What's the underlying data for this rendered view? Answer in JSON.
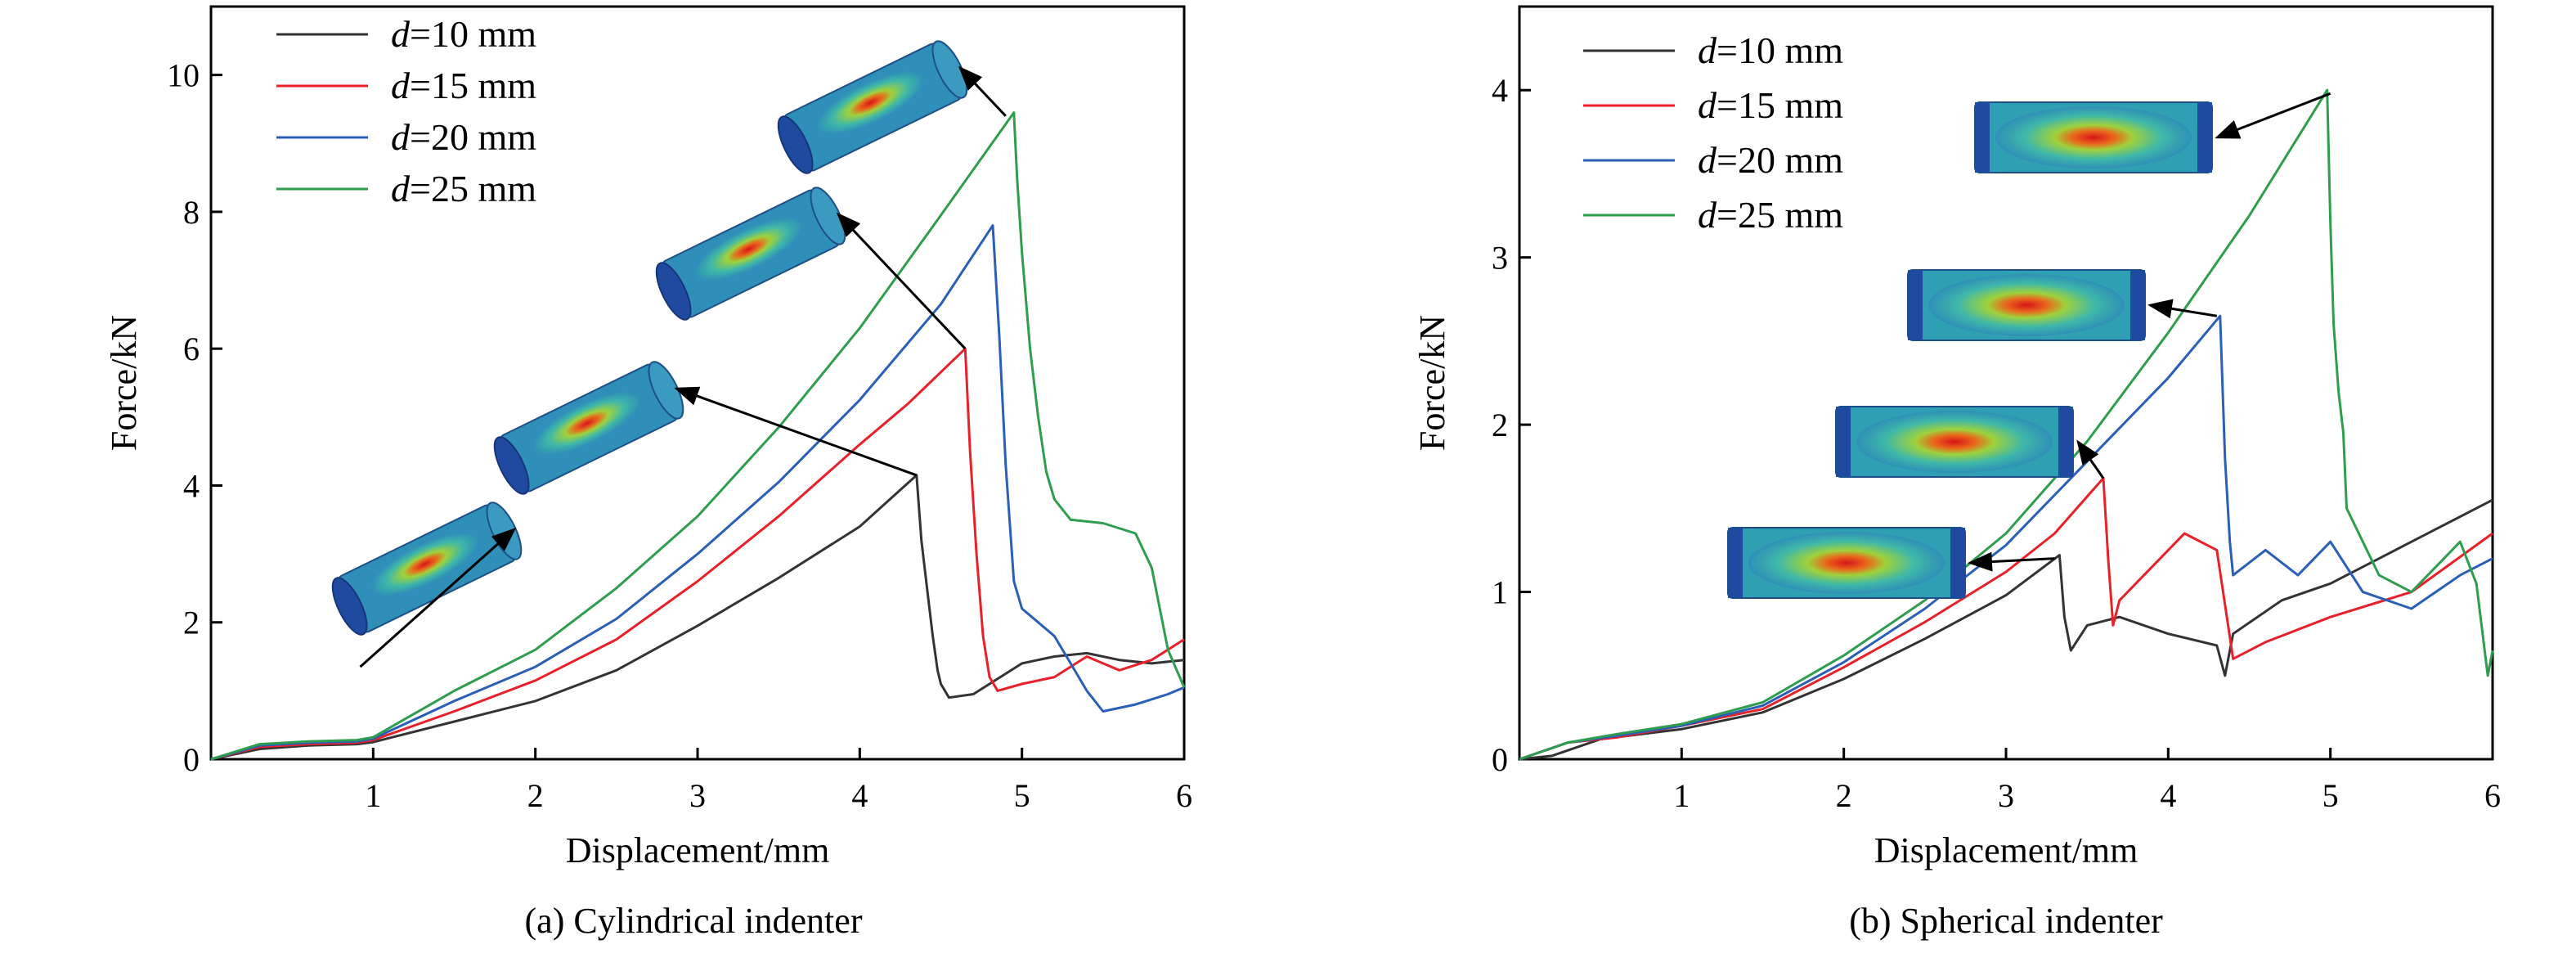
{
  "chart_data": [
    {
      "type": "line",
      "caption": "(a) Cylindrical indenter",
      "xlabel": "Displacement/mm",
      "ylabel": "Force/kN",
      "xlim": [
        0,
        6
      ],
      "ylim": [
        0,
        11
      ],
      "xticks": [
        1,
        2,
        3,
        4,
        5,
        6
      ],
      "yticks": [
        0,
        2,
        4,
        6,
        8,
        10
      ],
      "legend_position": "top-left",
      "series": [
        {
          "name": "d=10 mm",
          "color": "#333333",
          "x": [
            0,
            0.3,
            0.6,
            0.9,
            1.0,
            1.5,
            2.0,
            2.5,
            3.0,
            3.5,
            4.0,
            4.35,
            4.38,
            4.42,
            4.45,
            4.48,
            4.5,
            4.55,
            4.7,
            5.0,
            5.2,
            5.4,
            5.6,
            5.8,
            6.0
          ],
          "y": [
            0,
            0.15,
            0.2,
            0.22,
            0.25,
            0.55,
            0.85,
            1.3,
            1.95,
            2.65,
            3.4,
            4.15,
            3.2,
            2.4,
            1.8,
            1.3,
            1.1,
            0.9,
            0.95,
            1.4,
            1.5,
            1.55,
            1.45,
            1.4,
            1.45
          ]
        },
        {
          "name": "d=15 mm",
          "color": "#e8202a",
          "x": [
            0,
            0.3,
            0.6,
            0.9,
            1.0,
            1.5,
            2.0,
            2.5,
            3.0,
            3.5,
            4.0,
            4.3,
            4.65,
            4.68,
            4.72,
            4.76,
            4.8,
            4.85,
            5.0,
            5.2,
            5.4,
            5.6,
            5.8,
            6.0
          ],
          "y": [
            0,
            0.18,
            0.22,
            0.24,
            0.28,
            0.7,
            1.15,
            1.75,
            2.6,
            3.55,
            4.6,
            5.2,
            6.0,
            4.5,
            3.0,
            1.8,
            1.2,
            1.0,
            1.1,
            1.2,
            1.5,
            1.3,
            1.45,
            1.75
          ]
        },
        {
          "name": "d=20 mm",
          "color": "#2a5fb8",
          "x": [
            0,
            0.3,
            0.6,
            0.9,
            1.0,
            1.5,
            2.0,
            2.5,
            3.0,
            3.5,
            4.0,
            4.5,
            4.82,
            4.86,
            4.9,
            4.95,
            5.0,
            5.1,
            5.2,
            5.3,
            5.4,
            5.5,
            5.7,
            5.9,
            6.0
          ],
          "y": [
            0,
            0.2,
            0.24,
            0.26,
            0.3,
            0.85,
            1.35,
            2.05,
            3.0,
            4.05,
            5.25,
            6.65,
            7.8,
            6.2,
            4.3,
            2.6,
            2.2,
            2.0,
            1.8,
            1.4,
            1.0,
            0.7,
            0.8,
            0.95,
            1.05
          ]
        },
        {
          "name": "d=25 mm",
          "color": "#2e9e4e",
          "x": [
            0,
            0.3,
            0.6,
            0.9,
            1.0,
            1.5,
            2.0,
            2.5,
            3.0,
            3.5,
            4.0,
            4.5,
            4.95,
            4.97,
            5.0,
            5.05,
            5.1,
            5.15,
            5.2,
            5.3,
            5.5,
            5.7,
            5.8,
            5.9,
            6.0
          ],
          "y": [
            0,
            0.22,
            0.26,
            0.28,
            0.32,
            1.0,
            1.6,
            2.5,
            3.55,
            4.85,
            6.3,
            7.95,
            9.45,
            8.5,
            7.4,
            6.0,
            5.0,
            4.2,
            3.8,
            3.5,
            3.45,
            3.3,
            2.8,
            1.6,
            1.05
          ]
        }
      ]
    },
    {
      "type": "line",
      "caption": "(b) Spherical indenter",
      "xlabel": "Displacement/mm",
      "ylabel": "Force/kN",
      "xlim": [
        0,
        6
      ],
      "ylim": [
        0,
        4.5
      ],
      "xticks": [
        1,
        2,
        3,
        4,
        5,
        6
      ],
      "yticks": [
        0,
        1,
        2,
        3,
        4
      ],
      "legend_position": "top-left",
      "series": [
        {
          "name": "d=10 mm",
          "color": "#333333",
          "x": [
            0,
            0.2,
            0.5,
            1.0,
            1.5,
            2.0,
            2.5,
            3.0,
            3.33,
            3.36,
            3.4,
            3.5,
            3.7,
            4.0,
            4.3,
            4.35,
            4.4,
            4.7,
            5.0,
            5.3,
            5.5,
            6.0
          ],
          "y": [
            0,
            0.02,
            0.12,
            0.18,
            0.28,
            0.48,
            0.72,
            0.98,
            1.22,
            0.85,
            0.65,
            0.8,
            0.85,
            0.75,
            0.68,
            0.5,
            0.75,
            0.95,
            1.05,
            1.2,
            1.3,
            1.55
          ]
        },
        {
          "name": "d=15 mm",
          "color": "#e8202a",
          "x": [
            0,
            0.3,
            0.6,
            1.0,
            1.5,
            2.0,
            2.5,
            3.0,
            3.3,
            3.6,
            3.63,
            3.66,
            3.7,
            3.9,
            4.1,
            4.3,
            4.4,
            4.6,
            5.0,
            5.5,
            6.0
          ],
          "y": [
            0,
            0.1,
            0.13,
            0.2,
            0.3,
            0.55,
            0.82,
            1.12,
            1.35,
            1.68,
            1.2,
            0.8,
            0.95,
            1.15,
            1.35,
            1.25,
            0.6,
            0.7,
            0.85,
            1.0,
            1.35
          ]
        },
        {
          "name": "d=20 mm",
          "color": "#2a5fb8",
          "x": [
            0,
            0.3,
            0.6,
            1.0,
            1.5,
            2.0,
            2.5,
            3.0,
            3.5,
            4.0,
            4.32,
            4.35,
            4.38,
            4.4,
            4.6,
            4.8,
            5.0,
            5.2,
            5.5,
            5.8,
            6.0
          ],
          "y": [
            0,
            0.1,
            0.14,
            0.2,
            0.32,
            0.58,
            0.9,
            1.28,
            1.78,
            2.28,
            2.65,
            1.8,
            1.3,
            1.1,
            1.25,
            1.1,
            1.3,
            1.0,
            0.9,
            1.1,
            1.2
          ]
        },
        {
          "name": "d=25 mm",
          "color": "#2e9e4e",
          "x": [
            0,
            0.3,
            0.6,
            1.0,
            1.5,
            2.0,
            2.5,
            3.0,
            3.5,
            4.0,
            4.5,
            4.98,
            5.0,
            5.02,
            5.05,
            5.08,
            5.1,
            5.3,
            5.5,
            5.7,
            5.8,
            5.9,
            5.97,
            6.0
          ],
          "y": [
            0,
            0.1,
            0.15,
            0.21,
            0.34,
            0.62,
            0.95,
            1.35,
            1.9,
            2.55,
            3.25,
            4.0,
            3.2,
            2.6,
            2.2,
            1.95,
            1.5,
            1.1,
            1.0,
            1.2,
            1.3,
            1.05,
            0.5,
            0.65
          ]
        }
      ]
    }
  ]
}
